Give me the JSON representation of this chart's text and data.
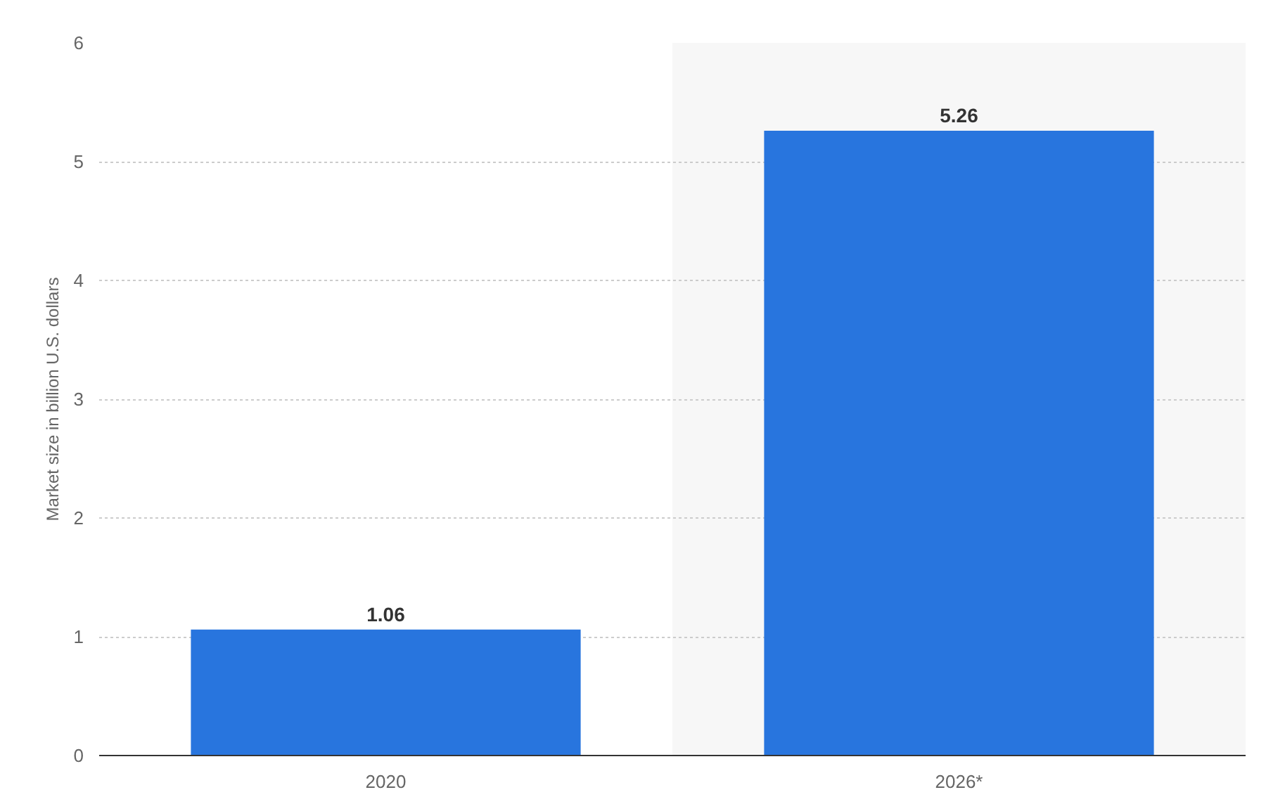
{
  "chart_data": {
    "type": "bar",
    "ylabel": "Market size in billion U.S. dollars",
    "categories": [
      "2020",
      "2026*"
    ],
    "values": [
      1.06,
      5.26
    ],
    "color": "#2875de",
    "ylim": [
      0,
      6
    ],
    "yticks": [
      0,
      1,
      2,
      3,
      4,
      5,
      6
    ],
    "grid": "y",
    "data_labels": true,
    "bands": [
      {
        "axis": "x",
        "from": "2026*",
        "to": "2026*",
        "color": "#f7f7f7"
      }
    ]
  }
}
